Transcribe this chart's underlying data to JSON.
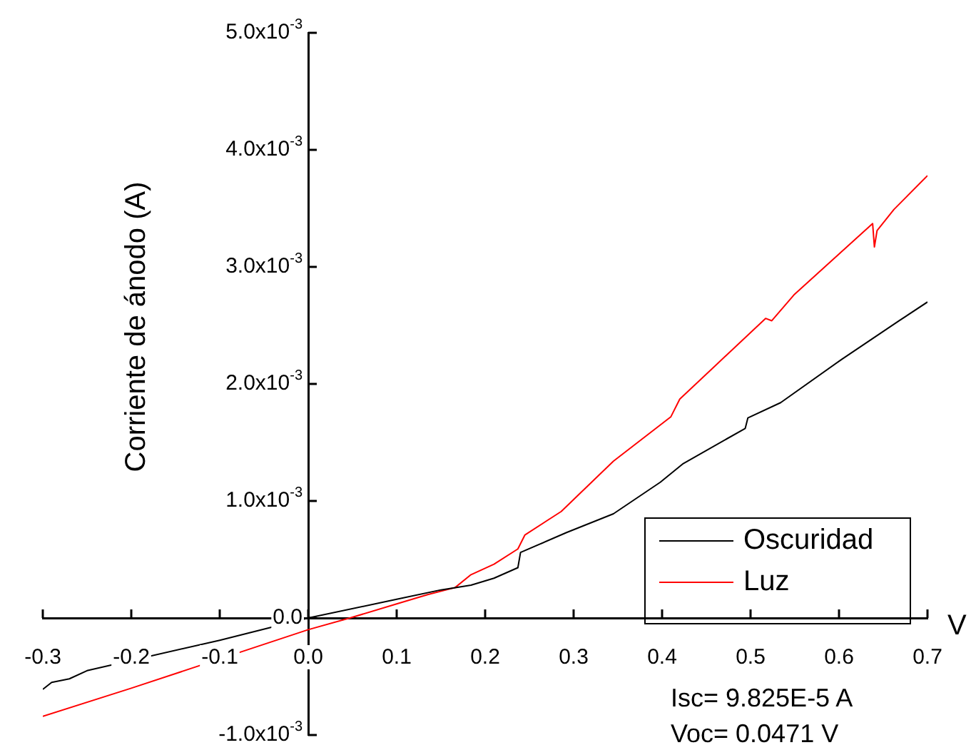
{
  "chart_data": {
    "type": "line",
    "xlabel": "V",
    "ylabel": "Corriente de ánodo (A)",
    "annotations": [
      "Isc= 9.825E-5 A",
      "Voc= 0.0471 V"
    ],
    "xlim": [
      -0.3,
      0.7
    ],
    "xticks": [
      -0.3,
      -0.2,
      -0.1,
      {
        "value": 0,
        "label": "0.0"
      },
      0.1,
      0.2,
      0.3,
      0.4,
      0.5,
      0.6,
      0.7
    ],
    "ylim": [
      -0.001,
      0.005
    ],
    "yticks": [
      {
        "value": -0.001,
        "label": "-1.0x10$^{-3}$"
      },
      {
        "value": 0,
        "label": "0.0"
      },
      {
        "value": 0.001,
        "label": "1.0x10$^{-3}$"
      },
      {
        "value": 0.002,
        "label": "2.0x10$^{-3}$"
      },
      {
        "value": 0.003,
        "label": "3.0x10$^{-3}$"
      },
      {
        "value": 0.004,
        "label": "4.0x10$^{-3}$"
      },
      {
        "value": 0.005,
        "label": "5.0x10$^{-3}$"
      }
    ],
    "grid": false,
    "legend": "bottom right",
    "marker": "none",
    "line_style": "solid",
    "series": [
      {
        "name": "Oscuridad",
        "color": "#000000",
        "x": [
          -0.3,
          -0.29,
          -0.27,
          -0.25,
          -0.1,
          0,
          0.1,
          0.15,
          0.184,
          0.21,
          0.237,
          0.24,
          0.292,
          0.345,
          0.398,
          0.424,
          0.494,
          0.497,
          0.534,
          0.603,
          0.668,
          0.7
        ],
        "values": [
          -0.00061,
          -0.00055,
          -0.00052,
          -0.00045,
          -0.00019,
          0,
          0.00016,
          0.00024,
          0.00028,
          0.00034,
          0.00043,
          0.00056,
          0.00073,
          0.00089,
          0.00116,
          0.00132,
          0.00162,
          0.00171,
          0.00184,
          0.00221,
          0.00254,
          0.0027
        ]
      },
      {
        "name": "Luz",
        "color": "#ff0000",
        "x": [
          -0.3,
          -0.2,
          0,
          0.0471,
          0.1,
          0.135,
          0.166,
          0.184,
          0.21,
          0.237,
          0.245,
          0.286,
          0.345,
          0.41,
          0.42,
          0.517,
          0.524,
          0.549,
          0.638,
          0.64,
          0.643,
          0.662,
          0.7
        ],
        "values": [
          -0.00084,
          -0.0006,
          -0.0001,
          0,
          0.00012,
          0.0002,
          0.00026,
          0.00037,
          0.00046,
          0.00059,
          0.00071,
          0.00091,
          0.00134,
          0.00172,
          0.00187,
          0.00256,
          0.00254,
          0.00276,
          0.00337,
          0.00317,
          0.00331,
          0.00349,
          0.00378
        ]
      }
    ]
  }
}
